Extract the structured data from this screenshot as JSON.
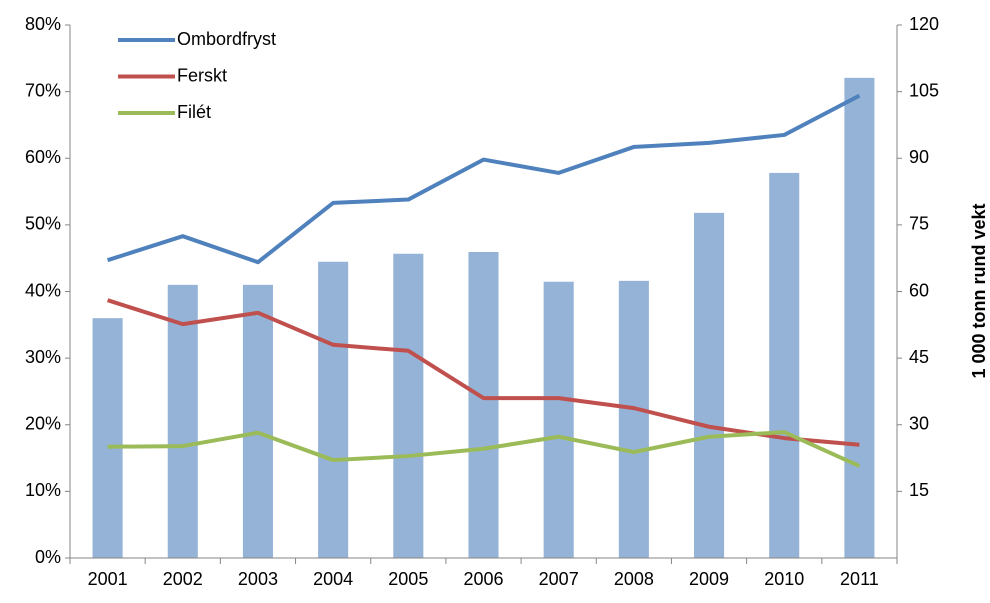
{
  "chart_data": {
    "type": "combo",
    "y2_label": "1 000 tonn rund vekt",
    "categories": [
      "2001",
      "2002",
      "2003",
      "2004",
      "2005",
      "2006",
      "2007",
      "2008",
      "2009",
      "2010",
      "2011"
    ],
    "series": [
      {
        "type": "bar",
        "color": "#95b3d7",
        "axis": "y2",
        "values": [
          54.0,
          61.5,
          61.5,
          66.7,
          68.5,
          68.9,
          62.2,
          62.4,
          77.7,
          86.7,
          108.1
        ]
      },
      {
        "type": "line",
        "name": "Ombordfryst",
        "color": "#4f81bd",
        "values": [
          44.7,
          48.3,
          44.4,
          53.3,
          53.8,
          59.8,
          57.8,
          61.7,
          62.3,
          63.5,
          69.4
        ]
      },
      {
        "type": "line",
        "name": "Ferskt",
        "color": "#c0504d",
        "values": [
          38.7,
          35.1,
          36.8,
          32.0,
          31.1,
          24.0,
          24.0,
          22.5,
          19.7,
          18.0,
          17.0
        ]
      },
      {
        "type": "line",
        "name": "Filét",
        "color": "#9bbb59",
        "values": [
          16.7,
          16.8,
          18.8,
          14.7,
          15.3,
          16.4,
          18.2,
          15.9,
          18.2,
          18.9,
          13.8
        ]
      }
    ],
    "ylim": [
      0,
      80
    ],
    "yticks": [
      {
        "value": 0,
        "label": "0%"
      },
      {
        "value": 10,
        "label": "10%"
      },
      {
        "value": 20,
        "label": "20%"
      },
      {
        "value": 30,
        "label": "30%"
      },
      {
        "value": 40,
        "label": "40%"
      },
      {
        "value": 50,
        "label": "50%"
      },
      {
        "value": 60,
        "label": "60%"
      },
      {
        "value": 70,
        "label": "70%"
      },
      {
        "value": 80,
        "label": "80%"
      }
    ],
    "y2lim": [
      0,
      120
    ],
    "y2ticks": [
      15,
      30,
      45,
      60,
      75,
      90,
      105,
      120
    ],
    "grid": false,
    "legend": "top-left"
  }
}
